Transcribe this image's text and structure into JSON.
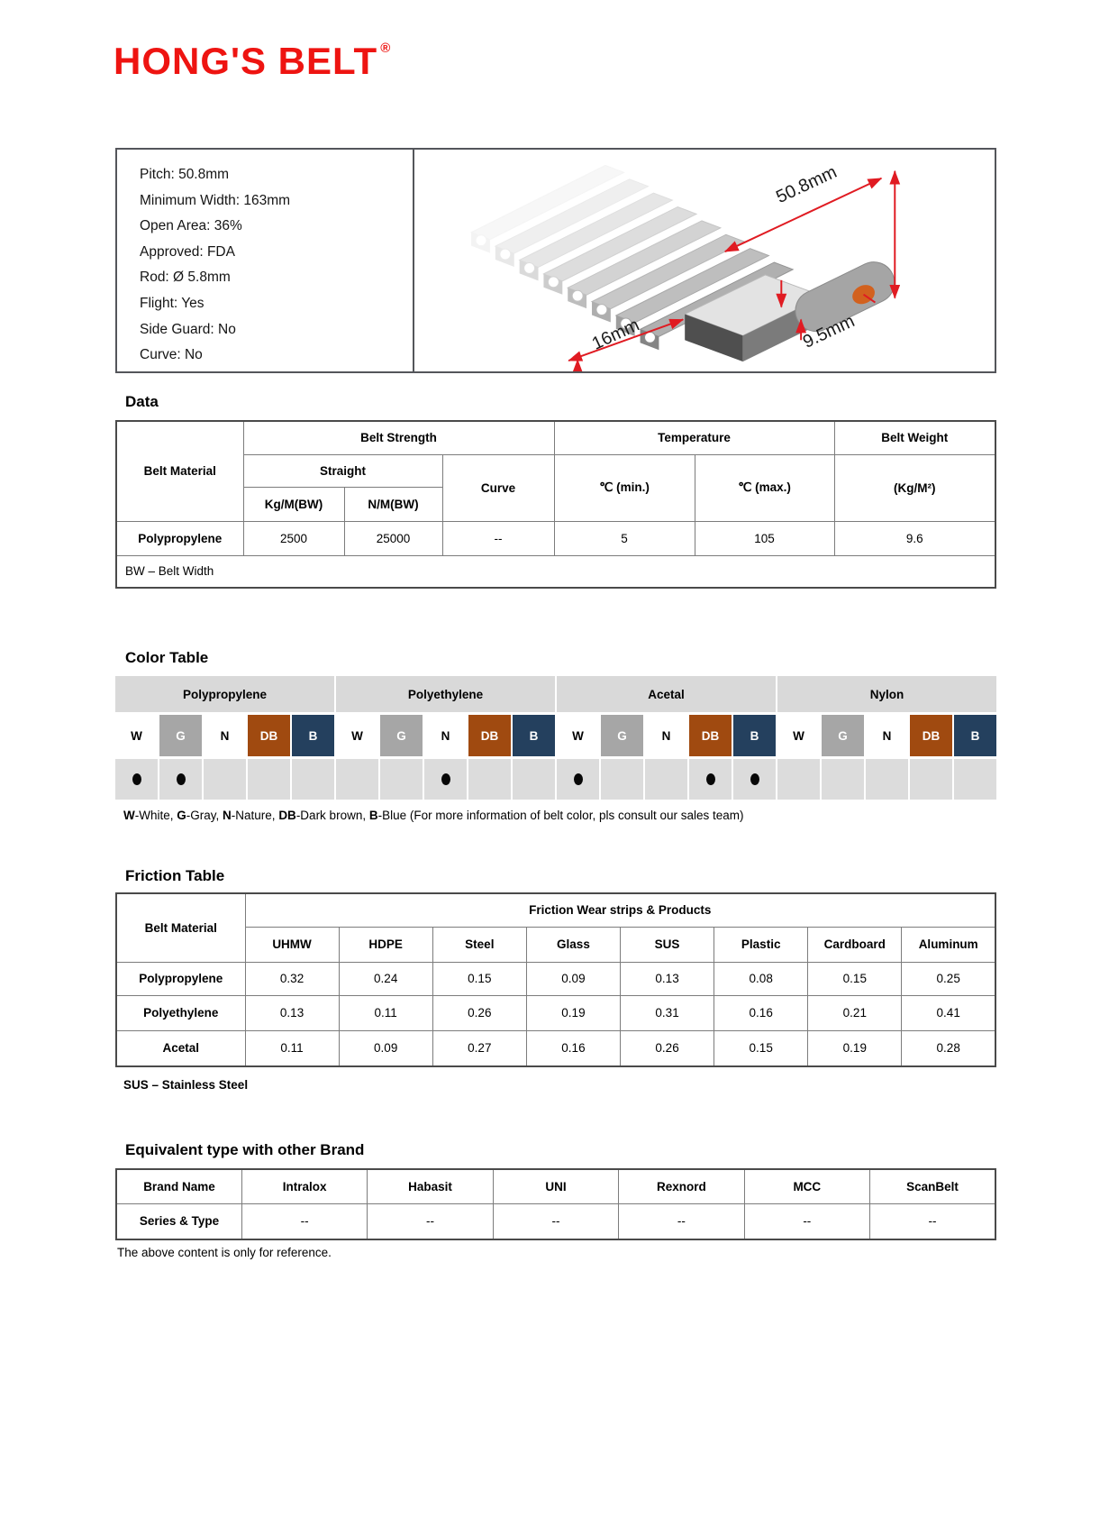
{
  "logo": {
    "text": "HONG'S BELT",
    "registered": "®"
  },
  "specs": {
    "lines": [
      "Pitch: 50.8mm",
      "Minimum Width: 163mm",
      "Open Area: 36%",
      "Approved: FDA",
      "Rod: Ø 5.8mm",
      "Flight: Yes",
      "Side Guard: No",
      "Curve: No"
    ]
  },
  "product_image": {
    "dim_pitch": "50.8mm",
    "dim_edge": "16mm",
    "dim_thickness": "9.5mm"
  },
  "sections": {
    "data": "Data",
    "color": "Color Table",
    "friction": "Friction Table",
    "equivalent": "Equivalent type with other Brand"
  },
  "data_table": {
    "belt_material_label": "Belt Material",
    "belt_strength_label": "Belt Strength",
    "straight_label": "Straight",
    "kgm_label": "Kg/M(BW)",
    "nm_label": "N/M(BW)",
    "curve_label": "Curve",
    "temperature_label": "Temperature",
    "temp_min_label": "℃ (min.)",
    "temp_max_label": "℃ (max.)",
    "belt_weight_label": "Belt Weight",
    "belt_weight_unit": "(Kg/M²)",
    "row": {
      "material": "Polypropylene",
      "kgm": "2500",
      "nm": "25000",
      "curve": "--",
      "temp_min": "5",
      "temp_max": "105",
      "weight": "9.6"
    },
    "footnote": "BW – Belt Width"
  },
  "color_table": {
    "groups": [
      "Polypropylene",
      "Polyethylene",
      "Acetal",
      "Nylon"
    ],
    "header_bg": "#d9d9d9",
    "dot_row_bg": "#dcdcdc",
    "swatches": [
      {
        "code": "W",
        "bg": "#ffffff",
        "fg": "#000000"
      },
      {
        "code": "G",
        "bg": "#a6a6a6",
        "fg": "#ffffff"
      },
      {
        "code": "N",
        "bg": "#ffffff",
        "fg": "#000000"
      },
      {
        "code": "DB",
        "bg": "#a04a10",
        "fg": "#ffffff"
      },
      {
        "code": "B",
        "bg": "#24405e",
        "fg": "#ffffff"
      }
    ],
    "availability": [
      [
        1,
        1,
        0,
        0,
        0
      ],
      [
        0,
        0,
        1,
        0,
        0
      ],
      [
        1,
        0,
        0,
        1,
        1
      ],
      [
        0,
        0,
        0,
        0,
        0
      ]
    ],
    "note_segments": [
      {
        "text": "W",
        "bold": true
      },
      {
        "text": "-White, ",
        "bold": false
      },
      {
        "text": "G",
        "bold": true
      },
      {
        "text": "-Gray, ",
        "bold": false
      },
      {
        "text": "N",
        "bold": true
      },
      {
        "text": "-Nature, ",
        "bold": false
      },
      {
        "text": "DB",
        "bold": true
      },
      {
        "text": "-Dark brown, ",
        "bold": false
      },
      {
        "text": "B",
        "bold": true
      },
      {
        "text": "-Blue (For more information of belt color, pls consult our sales team)",
        "bold": false
      }
    ]
  },
  "friction_table": {
    "belt_material_label": "Belt Material",
    "group_header": "Friction Wear strips & Products",
    "surfaces": [
      "UHMW",
      "HDPE",
      "Steel",
      "Glass",
      "SUS",
      "Plastic",
      "Cardboard",
      "Aluminum"
    ],
    "rows": [
      {
        "material": "Polypropylene",
        "values": [
          "0.32",
          "0.24",
          "0.15",
          "0.09",
          "0.13",
          "0.08",
          "0.15",
          "0.25"
        ]
      },
      {
        "material": "Polyethylene",
        "values": [
          "0.13",
          "0.11",
          "0.26",
          "0.19",
          "0.31",
          "0.16",
          "0.21",
          "0.41"
        ]
      },
      {
        "material": "Acetal",
        "values": [
          "0.11",
          "0.09",
          "0.27",
          "0.16",
          "0.26",
          "0.15",
          "0.19",
          "0.28"
        ]
      }
    ],
    "footnote": "SUS – Stainless Steel"
  },
  "brand_table": {
    "header_row": [
      "Brand Name",
      "Intralox",
      "Habasit",
      "UNI",
      "Rexnord",
      "MCC",
      "ScanBelt"
    ],
    "value_row": [
      "Series & Type",
      "--",
      "--",
      "--",
      "--",
      "--",
      "--"
    ]
  },
  "footer_note": "The above content is only for reference.",
  "accent_colors": {
    "logo_red": "#ee1411",
    "dimension_red": "#e01b22"
  }
}
